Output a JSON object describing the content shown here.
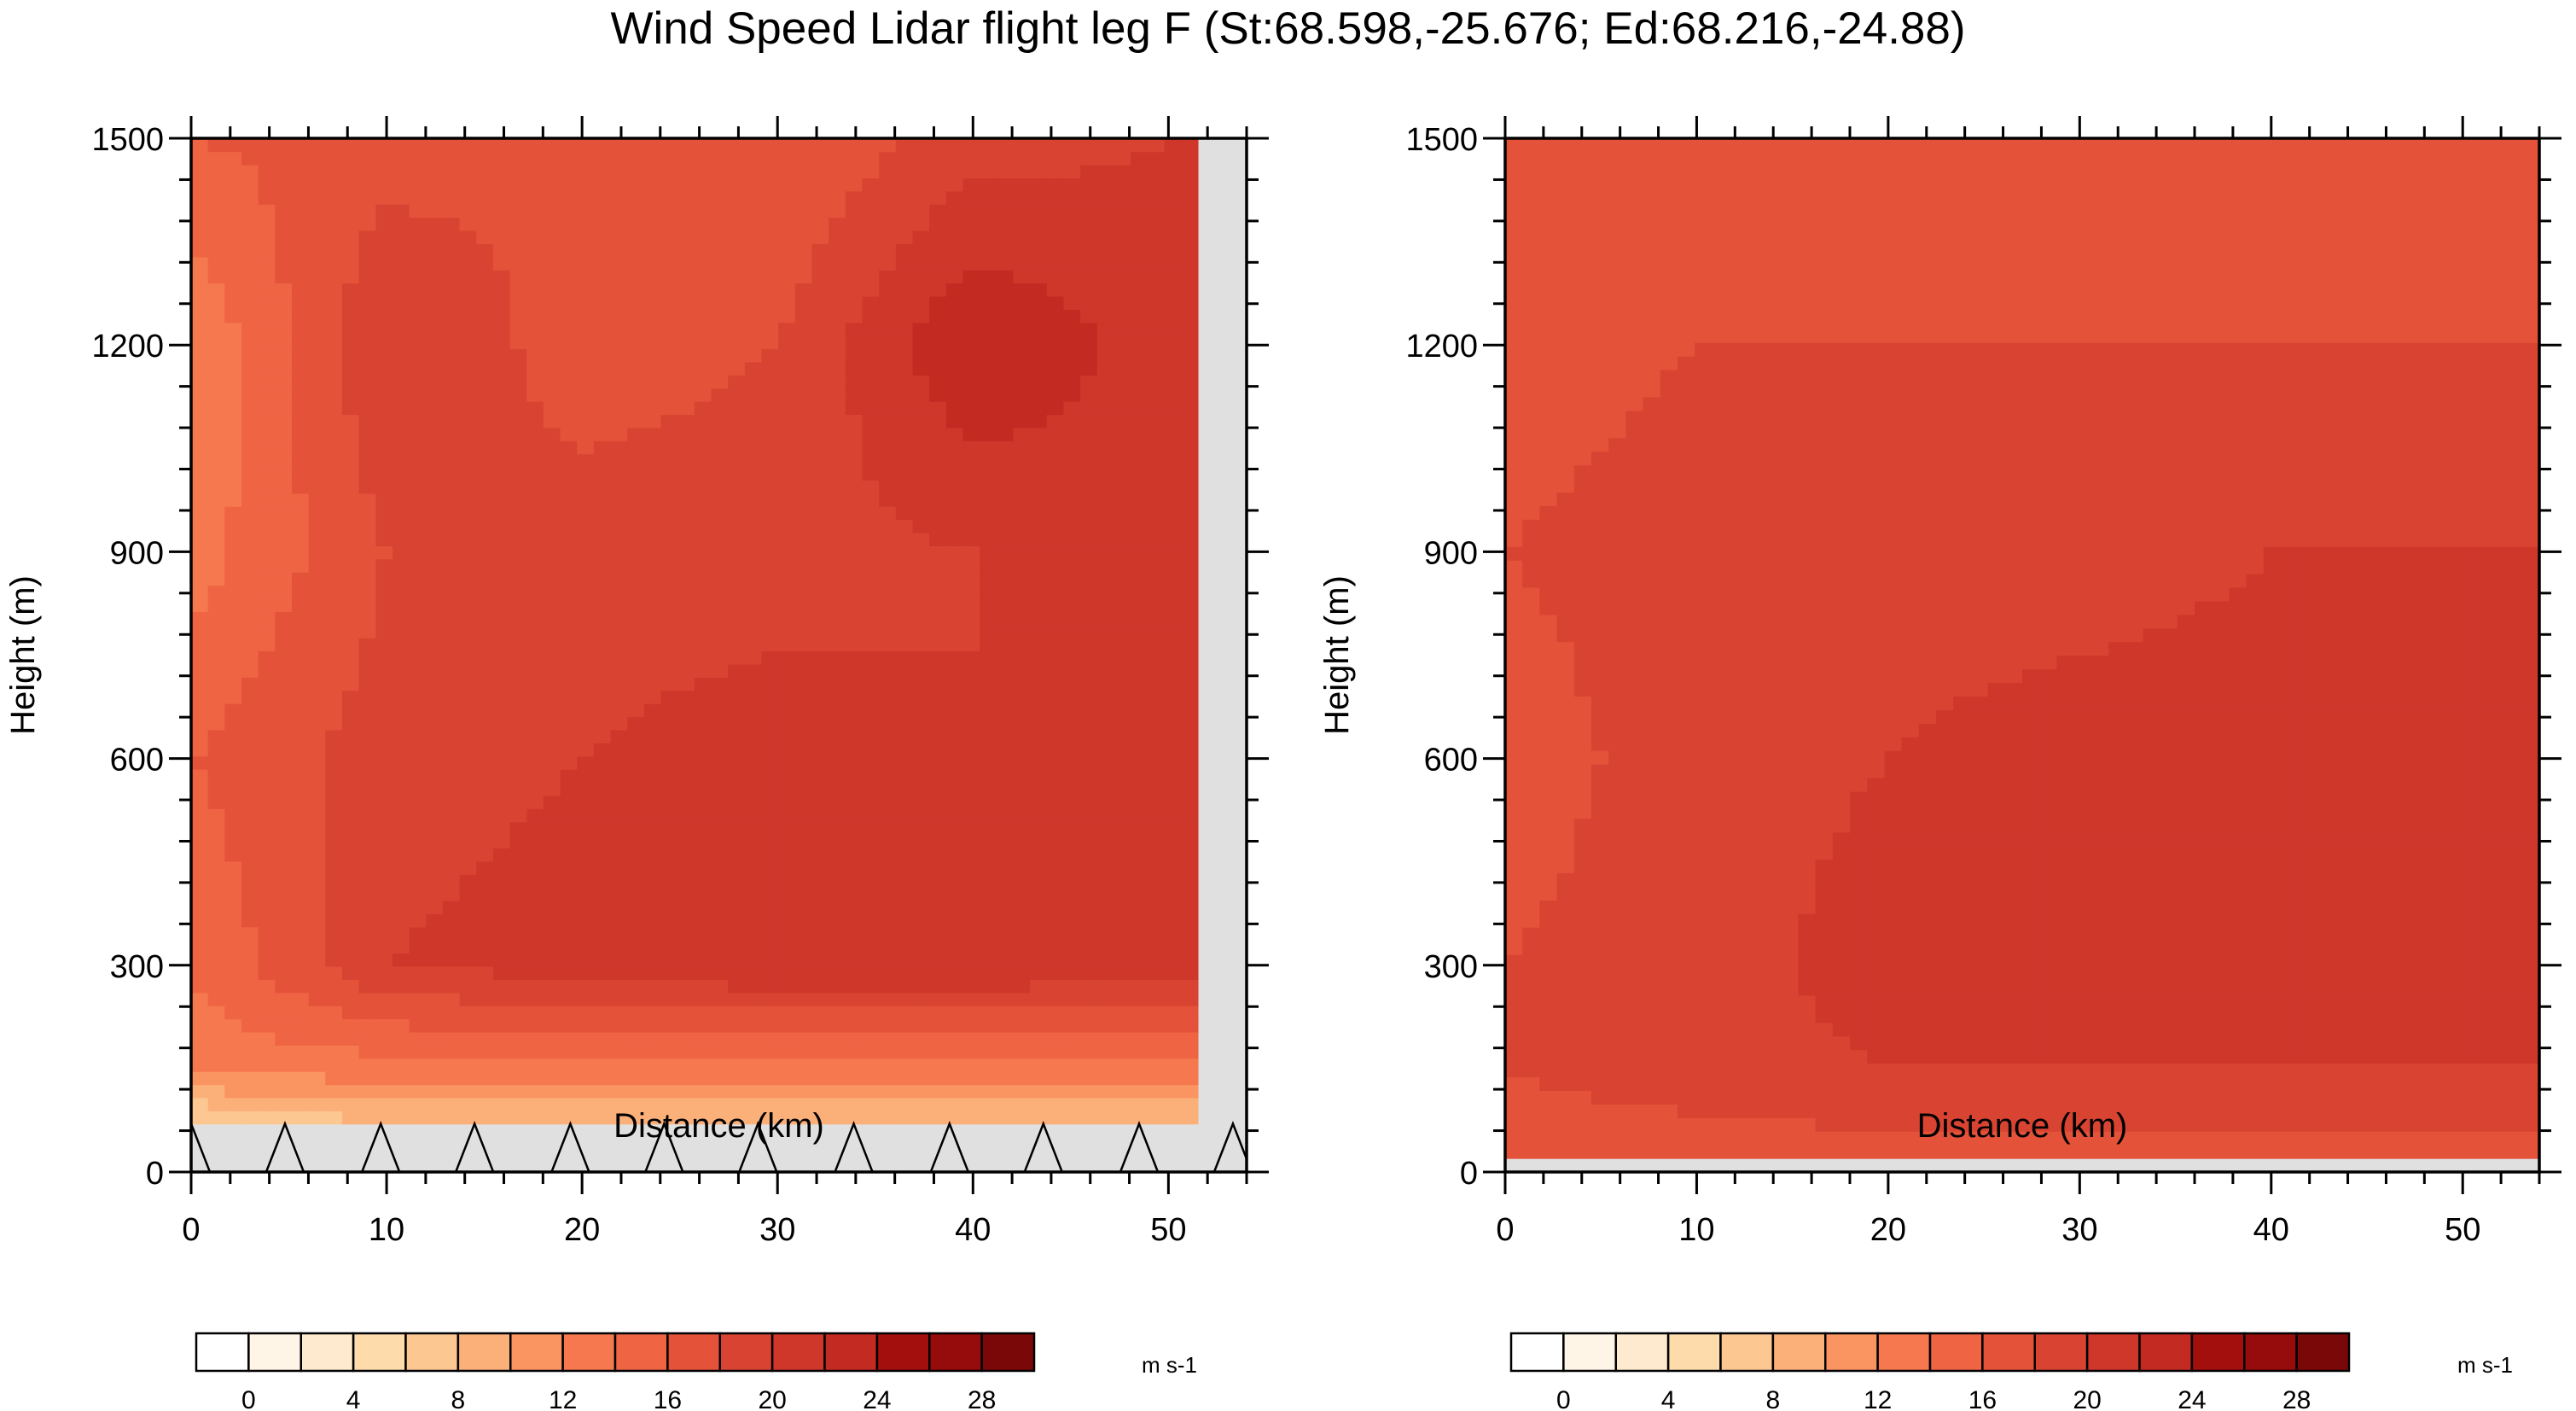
{
  "title": "Wind Speed Lidar flight leg F (St:68.598,-25.676; Ed:68.216,-24.88)",
  "colors": {
    "levels": [
      "#ffffff",
      "#fff5e6",
      "#feebcf",
      "#fddbaa",
      "#fdc792",
      "#fcb079",
      "#fa9461",
      "#f6784e",
      "#ef6544",
      "#e4523a",
      "#d94432",
      "#cf372b",
      "#c32a22",
      "#a20f0d",
      "#960b0b",
      "#7b0808"
    ],
    "missing": "#e0e0e0",
    "frame": "#000000"
  },
  "chart_data": [
    {
      "type": "contour",
      "panel": "left",
      "xlabel": "Distance (km)",
      "ylabel": "Height (m)",
      "xlim": [
        0,
        54
      ],
      "ylim": [
        0,
        1500
      ],
      "xticks": [
        0,
        10,
        20,
        30,
        40,
        50
      ],
      "yticks": [
        0,
        300,
        600,
        900,
        1200,
        1500
      ],
      "units": "m s-1",
      "colorbar_ticks": [
        0,
        4,
        8,
        12,
        16,
        20,
        24,
        28
      ],
      "data_x_extent_km": [
        0,
        51.5
      ],
      "missing_below_m": 70,
      "terrain_marker_x_km": [
        0,
        4.8,
        9.7,
        14.5,
        19.4,
        24.2,
        29.0,
        33.9,
        38.8,
        43.6,
        48.5,
        53.3
      ],
      "wind_speed_profile": {
        "x_km": [
          0,
          10,
          20,
          30,
          40,
          50
        ],
        "height_m": [
          70,
          150,
          300,
          600,
          900,
          1200,
          1500
        ],
        "values_ms": [
          [
            5,
            8,
            8,
            8,
            8,
            8
          ],
          [
            13,
            13,
            13,
            13,
            13,
            13
          ],
          [
            14,
            20,
            21,
            22,
            22,
            21
          ],
          [
            16,
            19,
            20,
            21,
            20,
            22
          ],
          [
            13,
            18,
            19,
            19,
            20,
            21
          ],
          [
            12,
            20,
            17,
            18,
            24,
            21
          ],
          [
            16,
            17,
            18,
            16,
            19,
            20
          ]
        ]
      }
    },
    {
      "type": "contour",
      "panel": "right",
      "xlabel": "Distance (km)",
      "ylabel": "Height (m)",
      "xlim": [
        0,
        54
      ],
      "ylim": [
        0,
        1500
      ],
      "xticks": [
        0,
        10,
        20,
        30,
        40,
        50
      ],
      "yticks": [
        0,
        300,
        600,
        900,
        1200,
        1500
      ],
      "units": "m s-1",
      "colorbar_ticks": [
        0,
        4,
        8,
        12,
        16,
        20,
        24,
        28
      ],
      "missing_below_m": 20,
      "wind_speed_profile": {
        "x_km": [
          0,
          10,
          20,
          30,
          40,
          50
        ],
        "height_m": [
          20,
          150,
          300,
          600,
          900,
          1200,
          1500
        ],
        "values_ms": [
          [
            17,
            17,
            17,
            17,
            17,
            17
          ],
          [
            18,
            19,
            20,
            20,
            20,
            20
          ],
          [
            18,
            19,
            21,
            21,
            22,
            21
          ],
          [
            17,
            19,
            20,
            21,
            21,
            21
          ],
          [
            18,
            19,
            19,
            19,
            20,
            20
          ],
          [
            17,
            18,
            18,
            18,
            18,
            18
          ],
          [
            17,
            17,
            17,
            17,
            17,
            17
          ]
        ]
      }
    }
  ]
}
